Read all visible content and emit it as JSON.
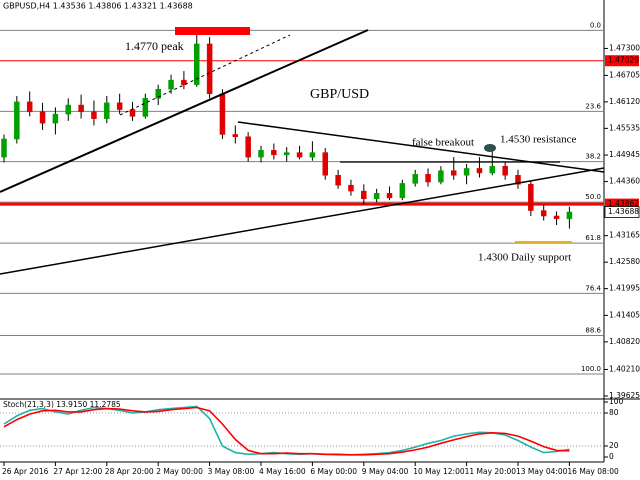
{
  "header": "GBPUSD,H4  1.43536 1.43806 1.43321 1.43688",
  "chart_data": [
    {
      "type": "candlestick",
      "categories": [
        "26 Apr 2016",
        null,
        null,
        null,
        "27 Apr 12:00",
        null,
        null,
        null,
        "28 Apr 20:00",
        null,
        null,
        null,
        "2 May 00:00",
        null,
        null,
        null,
        "3 May 08:00",
        null,
        null,
        null,
        "4 May 16:00",
        null,
        null,
        null,
        "6 May 00:00",
        null,
        null,
        null,
        "9 May 04:00",
        null,
        null,
        null,
        "10 May 12:00",
        null,
        null,
        null,
        "11 May 20:00",
        null,
        null,
        null,
        "13 May 04:00",
        null,
        null,
        null,
        "16 May 08:00"
      ],
      "open": [
        1.449,
        1.453,
        1.4612,
        1.459,
        1.4565,
        1.4585,
        1.4605,
        1.459,
        1.4575,
        1.461,
        1.4595,
        1.458,
        1.462,
        1.464,
        1.466,
        1.465,
        1.474,
        1.463,
        1.454,
        1.4535,
        1.449,
        1.4505,
        1.4495,
        1.45,
        1.449,
        1.45,
        1.445,
        1.4428,
        1.4415,
        1.4398,
        1.441,
        1.44,
        1.4432,
        1.4452,
        1.4435,
        1.446,
        1.445,
        1.4465,
        1.4455,
        1.447,
        1.445,
        1.443,
        1.4372,
        1.436,
        1.43536
      ],
      "high": [
        1.454,
        1.4625,
        1.4635,
        1.461,
        1.46,
        1.462,
        1.4628,
        1.4615,
        1.4625,
        1.463,
        1.4612,
        1.463,
        1.465,
        1.4672,
        1.468,
        1.477,
        1.4755,
        1.464,
        1.456,
        1.4545,
        1.4515,
        1.452,
        1.4512,
        1.4515,
        1.4525,
        1.451,
        1.4462,
        1.444,
        1.443,
        1.442,
        1.4425,
        1.444,
        1.4462,
        1.4465,
        1.447,
        1.449,
        1.4475,
        1.449,
        1.4518,
        1.448,
        1.4462,
        1.4438,
        1.4385,
        1.437,
        1.43806
      ],
      "low": [
        1.4478,
        1.452,
        1.458,
        1.455,
        1.454,
        1.457,
        1.4575,
        1.456,
        1.4565,
        1.4585,
        1.457,
        1.4575,
        1.4605,
        1.463,
        1.464,
        1.4645,
        1.462,
        1.453,
        1.452,
        1.448,
        1.4478,
        1.4485,
        1.448,
        1.4485,
        1.4482,
        1.444,
        1.442,
        1.4405,
        1.4385,
        1.439,
        1.4395,
        1.4395,
        1.4425,
        1.4425,
        1.443,
        1.444,
        1.443,
        1.4445,
        1.445,
        1.444,
        1.442,
        1.436,
        1.435,
        1.434,
        1.43321
      ],
      "close": [
        1.453,
        1.4612,
        1.459,
        1.4565,
        1.4585,
        1.4605,
        1.459,
        1.4575,
        1.461,
        1.4595,
        1.458,
        1.462,
        1.464,
        1.466,
        1.465,
        1.474,
        1.463,
        1.454,
        1.4535,
        1.449,
        1.4505,
        1.4495,
        1.45,
        1.449,
        1.45,
        1.445,
        1.4428,
        1.4415,
        1.4398,
        1.441,
        1.44,
        1.4432,
        1.4452,
        1.4435,
        1.446,
        1.445,
        1.4465,
        1.4455,
        1.447,
        1.445,
        1.443,
        1.4372,
        1.436,
        1.4354,
        1.43688
      ],
      "up_color": "#00a000",
      "down_color": "#e00000",
      "ylim": [
        1.3958,
        1.4837
      ],
      "yticks": [
        {
          "value": 1.473,
          "label": "1.47300"
        },
        1.46705,
        {
          "value": 1.4612,
          "label": "1.46120"
        },
        1.45535,
        1.44945,
        {
          "value": 1.4436,
          "label": "1.44360"
        },
        1.43165,
        {
          "value": 1.4258,
          "label": "1.42580"
        },
        1.41995,
        1.41405,
        {
          "value": 1.4082,
          "label": "1.40820"
        },
        {
          "value": 1.4021,
          "label": "1.40210"
        },
        1.39625
      ],
      "price_lines": [
        {
          "value": 1.47029,
          "label": "1.47029",
          "color": "#ff0000"
        },
        {
          "value": 1.43862,
          "label": "1.43862",
          "color": "#ff0000"
        }
      ],
      "current_price": {
        "value": 1.43688,
        "label": "1.43688"
      },
      "fib_levels": [
        {
          "label": "0.0",
          "value": 1.477
        },
        {
          "label": "23.6",
          "value": 1.4591
        },
        {
          "label": "38.2",
          "value": 1.448
        },
        {
          "label": "50.0",
          "value": 1.43905
        },
        {
          "label": "61.8",
          "value": 1.43
        },
        {
          "label": "76.4",
          "value": 1.4189
        },
        {
          "label": "88.6",
          "value": 1.4096
        },
        {
          "label": "100.0",
          "value": 1.4011
        }
      ],
      "annotations": [
        "1.4770 peak",
        "GBP/USD",
        "false breakout",
        "1.4530 resistance",
        "1.4300 Daily support"
      ]
    },
    {
      "type": "line",
      "title": "Stoch(21,3,3) 13.9150 11.2785",
      "series": [
        {
          "color": "#20b2aa",
          "values": [
            60,
            75,
            85,
            88,
            82,
            78,
            85,
            90,
            88,
            85,
            80,
            82,
            86,
            88,
            90,
            92,
            70,
            20,
            8,
            5,
            6,
            8,
            6,
            5,
            6,
            5,
            4,
            4,
            5,
            6,
            8,
            12,
            18,
            25,
            30,
            38,
            42,
            45,
            44,
            40,
            30,
            18,
            8,
            10,
            13.915
          ]
        },
        {
          "color": "#ff0000",
          "values": [
            55,
            68,
            78,
            84,
            85,
            82,
            82,
            86,
            88,
            87,
            84,
            82,
            83,
            86,
            88,
            90,
            84,
            60,
            32,
            12,
            6,
            6,
            7,
            6,
            6,
            5,
            5,
            4,
            4,
            5,
            6,
            9,
            13,
            18,
            25,
            31,
            37,
            42,
            44,
            43,
            38,
            29,
            19,
            12,
            11.2785
          ]
        }
      ],
      "ylim": [
        0,
        100
      ],
      "yticks": [
        0,
        20,
        80,
        100
      ]
    }
  ]
}
